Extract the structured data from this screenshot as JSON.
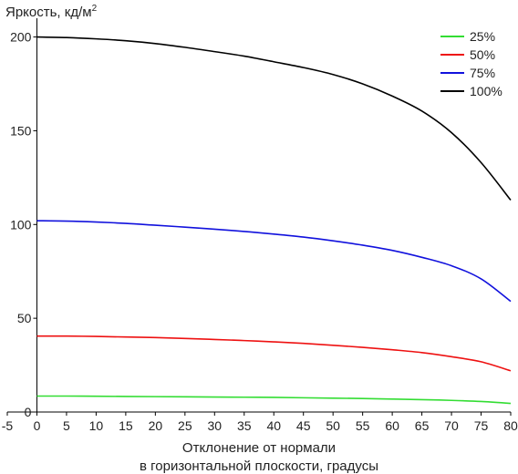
{
  "chart_data": {
    "type": "line",
    "ylabel_main": "Яркость, кд/м",
    "ylabel_sup": "2",
    "xlabel_line1": "Отклонение от нормали",
    "xlabel_line2": "в горизонтальной плоскости, градусы",
    "xlim": [
      -5,
      80
    ],
    "ylim": [
      0,
      210
    ],
    "xticks": [
      -5,
      0,
      5,
      10,
      15,
      20,
      25,
      30,
      35,
      40,
      45,
      50,
      55,
      60,
      65,
      70,
      75,
      80
    ],
    "yticks": [
      0,
      50,
      100,
      150,
      200
    ],
    "legend_position": "top-right",
    "x": [
      0,
      5,
      10,
      15,
      20,
      25,
      30,
      35,
      40,
      45,
      50,
      55,
      60,
      65,
      70,
      75,
      80
    ],
    "series": [
      {
        "name": "25%",
        "color": "#33dd33",
        "values": [
          8.5,
          8.5,
          8.4,
          8.3,
          8.2,
          8.1,
          8.0,
          7.9,
          7.8,
          7.6,
          7.4,
          7.2,
          6.9,
          6.6,
          6.2,
          5.6,
          4.6
        ]
      },
      {
        "name": "50%",
        "color": "#ee1111",
        "values": [
          40.5,
          40.5,
          40.3,
          40.0,
          39.7,
          39.2,
          38.7,
          38.1,
          37.4,
          36.6,
          35.6,
          34.5,
          33.2,
          31.7,
          29.5,
          26.8,
          22
        ]
      },
      {
        "name": "75%",
        "color": "#1111dd",
        "values": [
          102,
          101.8,
          101.3,
          100.6,
          99.6,
          98.6,
          97.5,
          96.3,
          94.9,
          93.3,
          91.3,
          89,
          86.2,
          82.5,
          78,
          71,
          59
        ]
      },
      {
        "name": "100%",
        "color": "#000000",
        "values": [
          200,
          199.7,
          199,
          198,
          196.5,
          194.5,
          192.2,
          189.8,
          186.8,
          183.7,
          180,
          175,
          168.5,
          160.5,
          149,
          133,
          113
        ]
      }
    ]
  }
}
